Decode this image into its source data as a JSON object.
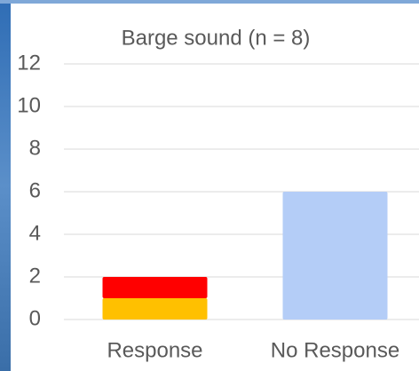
{
  "chart_data": {
    "type": "stacked-bar",
    "title": "Barge sound (n = 8)",
    "categories": [
      "Response",
      "No Response"
    ],
    "series": [
      {
        "color": "#ffc000",
        "values": [
          1,
          null
        ]
      },
      {
        "color": "#ff0000",
        "values": [
          1,
          null
        ]
      },
      {
        "color": "#b4cdf7",
        "values": [
          null,
          6
        ]
      }
    ],
    "ylim": [
      0,
      12
    ],
    "yticks": [
      0,
      2,
      4,
      6,
      8,
      10,
      12
    ],
    "grid": true
  }
}
